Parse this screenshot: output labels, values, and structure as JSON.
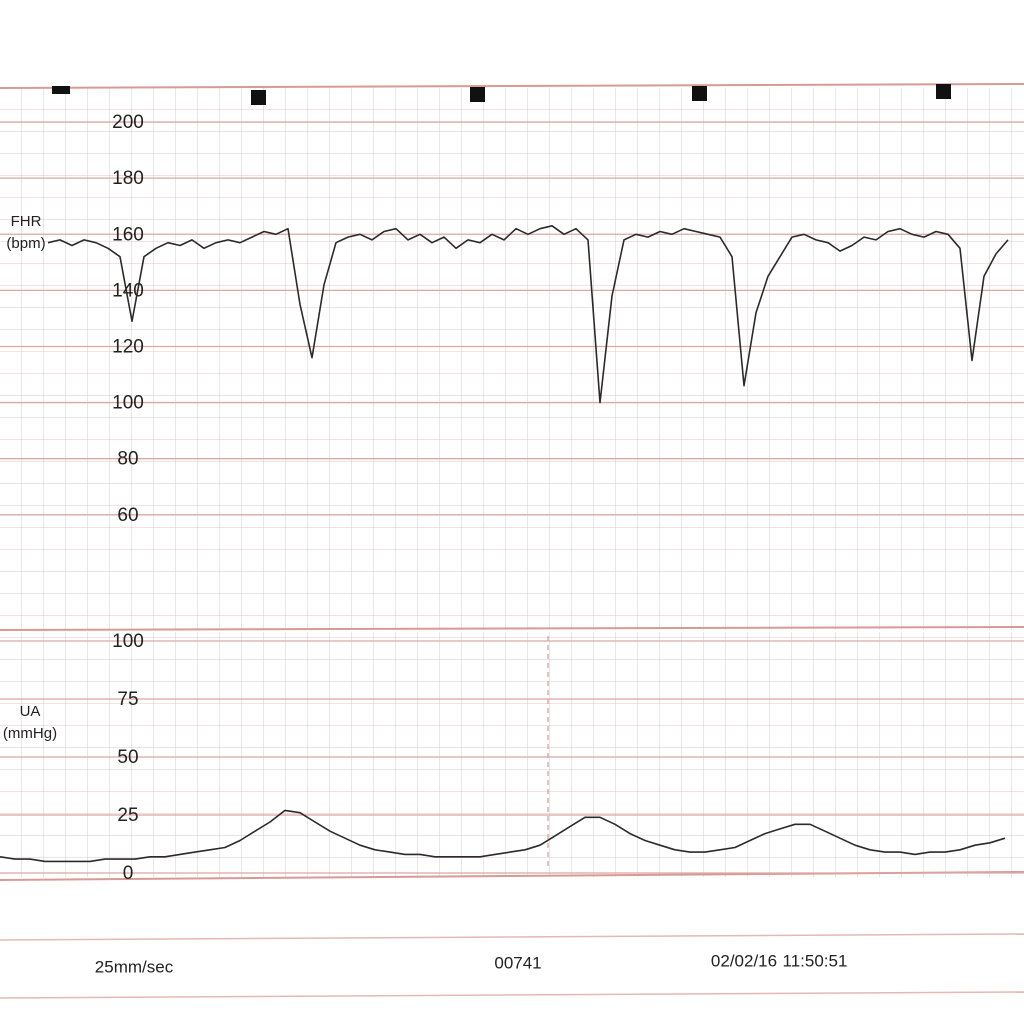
{
  "chart_data": [
    {
      "type": "line",
      "y_label_lines": [
        "FHR",
        "(bpm)"
      ],
      "color": "#2b2b2b",
      "grid": true,
      "ylim": [
        20,
        210
      ],
      "yticks": [
        60,
        80,
        100,
        120,
        140,
        160,
        180,
        200
      ],
      "values": [
        157,
        158,
        156,
        158,
        157,
        155,
        152,
        129,
        152,
        155,
        157,
        156,
        158,
        155,
        157,
        158,
        157,
        159,
        161,
        160,
        162,
        135,
        116,
        142,
        157,
        159,
        160,
        158,
        161,
        162,
        158,
        160,
        157,
        159,
        155,
        158,
        157,
        160,
        158,
        162,
        160,
        162,
        163,
        160,
        162,
        158,
        100,
        138,
        158,
        160,
        159,
        161,
        160,
        162,
        161,
        160,
        159,
        152,
        106,
        132,
        145,
        152,
        159,
        160,
        158,
        157,
        154,
        156,
        159,
        158,
        161,
        162,
        160,
        159,
        161,
        160,
        155,
        115,
        145,
        153,
        158
      ]
    },
    {
      "type": "line",
      "y_label_lines": [
        "UA",
        "(mmHg)"
      ],
      "color": "#2b2b2b",
      "grid": true,
      "ylim": [
        0,
        100
      ],
      "yticks": [
        0,
        25,
        50,
        75,
        100
      ],
      "values": [
        7,
        6,
        6,
        5,
        5,
        5,
        5,
        6,
        6,
        6,
        7,
        7,
        8,
        9,
        10,
        11,
        14,
        18,
        22,
        27,
        26,
        22,
        18,
        15,
        12,
        10,
        9,
        8,
        8,
        7,
        7,
        7,
        7,
        8,
        9,
        10,
        12,
        16,
        20,
        24,
        24,
        21,
        17,
        14,
        12,
        10,
        9,
        9,
        10,
        11,
        14,
        17,
        19,
        21,
        21,
        18,
        15,
        12,
        10,
        9,
        9,
        8,
        9,
        9,
        10,
        12,
        13,
        15
      ]
    }
  ],
  "footer": {
    "speed": "25mm/sec",
    "id": "00741",
    "date": "02/02/16",
    "time": "11:50:51"
  }
}
